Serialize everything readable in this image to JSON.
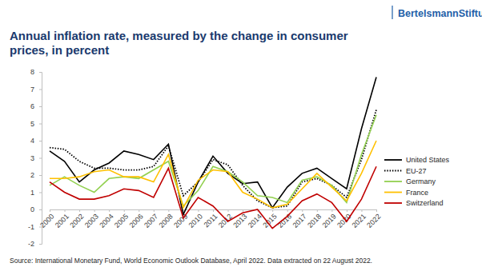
{
  "chart_data": {
    "type": "line",
    "title": "Annual inflation rate, measured by the change in consumer prices, in percent",
    "brand": "BertelsmannStiftung",
    "source": "Source: International Monetary Fund, World Economic Outlook Database, April 2022. Data extracted on 22 August 2022.",
    "categories": [
      "2000",
      "2001",
      "2002",
      "2003",
      "2004",
      "2005",
      "2006",
      "2007",
      "2008",
      "2009",
      "2010",
      "2011",
      "2012",
      "2013",
      "2014",
      "2015",
      "2016",
      "2017",
      "2018",
      "2019",
      "2020",
      "2021",
      "2022"
    ],
    "series": [
      {
        "name": "United States",
        "color": "#000000",
        "line_style": "solid",
        "values": [
          3.4,
          2.8,
          1.6,
          2.3,
          2.7,
          3.4,
          3.2,
          2.9,
          3.8,
          -0.3,
          1.6,
          3.1,
          2.1,
          1.5,
          1.6,
          0.1,
          1.3,
          2.1,
          2.4,
          1.8,
          1.2,
          4.7,
          7.7
        ]
      },
      {
        "name": "EU-27",
        "color": "#000000",
        "line_style": "dotted",
        "values": [
          3.6,
          3.5,
          2.8,
          2.4,
          2.4,
          2.3,
          2.3,
          2.5,
          3.7,
          0.8,
          1.6,
          2.9,
          2.6,
          1.4,
          0.5,
          0.1,
          0.2,
          1.6,
          1.8,
          1.4,
          0.7,
          2.9,
          5.8
        ]
      },
      {
        "name": "Germany",
        "color": "#92d050",
        "line_style": "solid",
        "values": [
          1.4,
          1.9,
          1.4,
          1.0,
          1.8,
          1.9,
          1.8,
          2.3,
          2.8,
          0.2,
          1.1,
          2.5,
          2.2,
          1.6,
          0.8,
          0.7,
          0.4,
          1.7,
          1.9,
          1.4,
          0.4,
          3.2,
          5.5
        ]
      },
      {
        "name": "France",
        "color": "#ffc000",
        "line_style": "solid",
        "values": [
          1.8,
          1.8,
          1.9,
          2.2,
          2.3,
          1.9,
          1.9,
          1.6,
          3.2,
          0.1,
          1.7,
          2.3,
          2.2,
          1.0,
          0.6,
          0.1,
          0.3,
          1.2,
          2.1,
          1.3,
          0.5,
          2.1,
          4.0
        ]
      },
      {
        "name": "Switzerland",
        "color": "#c00000",
        "line_style": "solid",
        "values": [
          1.6,
          1.0,
          0.6,
          0.6,
          0.8,
          1.2,
          1.1,
          0.7,
          2.4,
          -0.5,
          0.7,
          0.2,
          -0.7,
          -0.2,
          0.0,
          -1.1,
          -0.4,
          0.5,
          0.9,
          0.4,
          -0.7,
          0.6,
          2.5
        ]
      }
    ],
    "ylim": [
      -2,
      8
    ],
    "yticks": [
      -2,
      -1,
      0,
      1,
      2,
      3,
      4,
      5,
      6,
      7,
      8
    ],
    "grid": false,
    "legend": "right"
  }
}
